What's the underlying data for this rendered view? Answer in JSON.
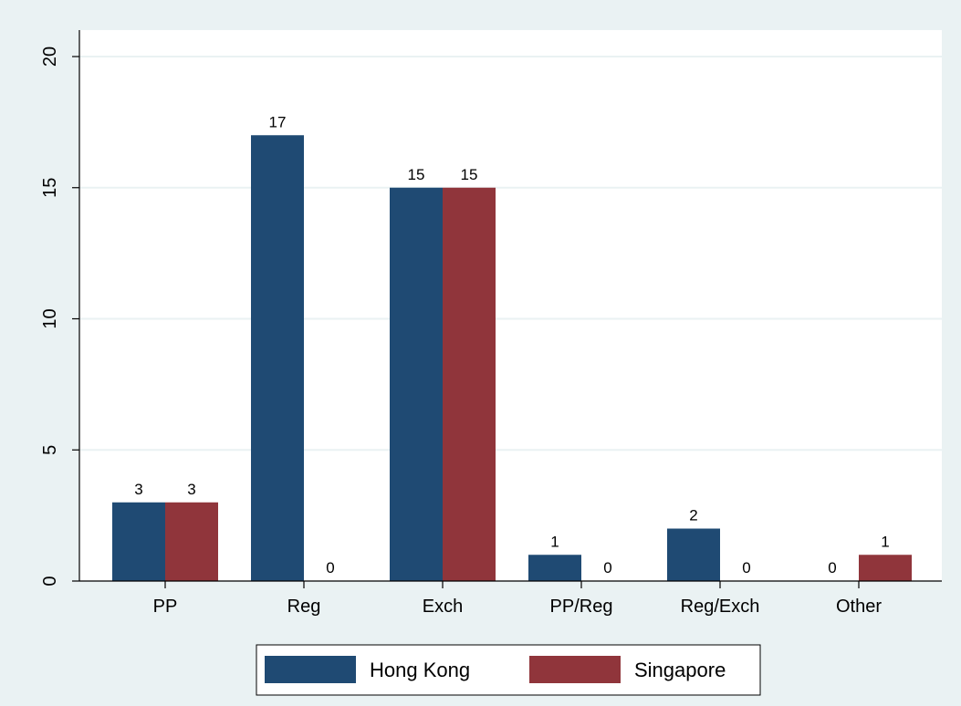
{
  "chart_data": {
    "type": "bar",
    "categories": [
      "PP",
      "Reg",
      "Exch",
      "PP/Reg",
      "Reg/Exch",
      "Other"
    ],
    "series": [
      {
        "name": "Hong Kong",
        "values": [
          3,
          17,
          15,
          1,
          2,
          0
        ],
        "color": "#1f4a73"
      },
      {
        "name": "Singapore",
        "values": [
          3,
          0,
          15,
          0,
          0,
          1
        ],
        "color": "#90353b"
      }
    ],
    "ylim": [
      0,
      20
    ],
    "yticks": [
      0,
      5,
      10,
      15,
      20
    ],
    "title": "",
    "xlabel": "",
    "ylabel": "",
    "grid": true,
    "legend_position": "bottom",
    "data_labels": true
  },
  "colors": {
    "background": "#eaf2f3",
    "plot_area": "#ffffff",
    "grid": "#eaf2f3"
  }
}
